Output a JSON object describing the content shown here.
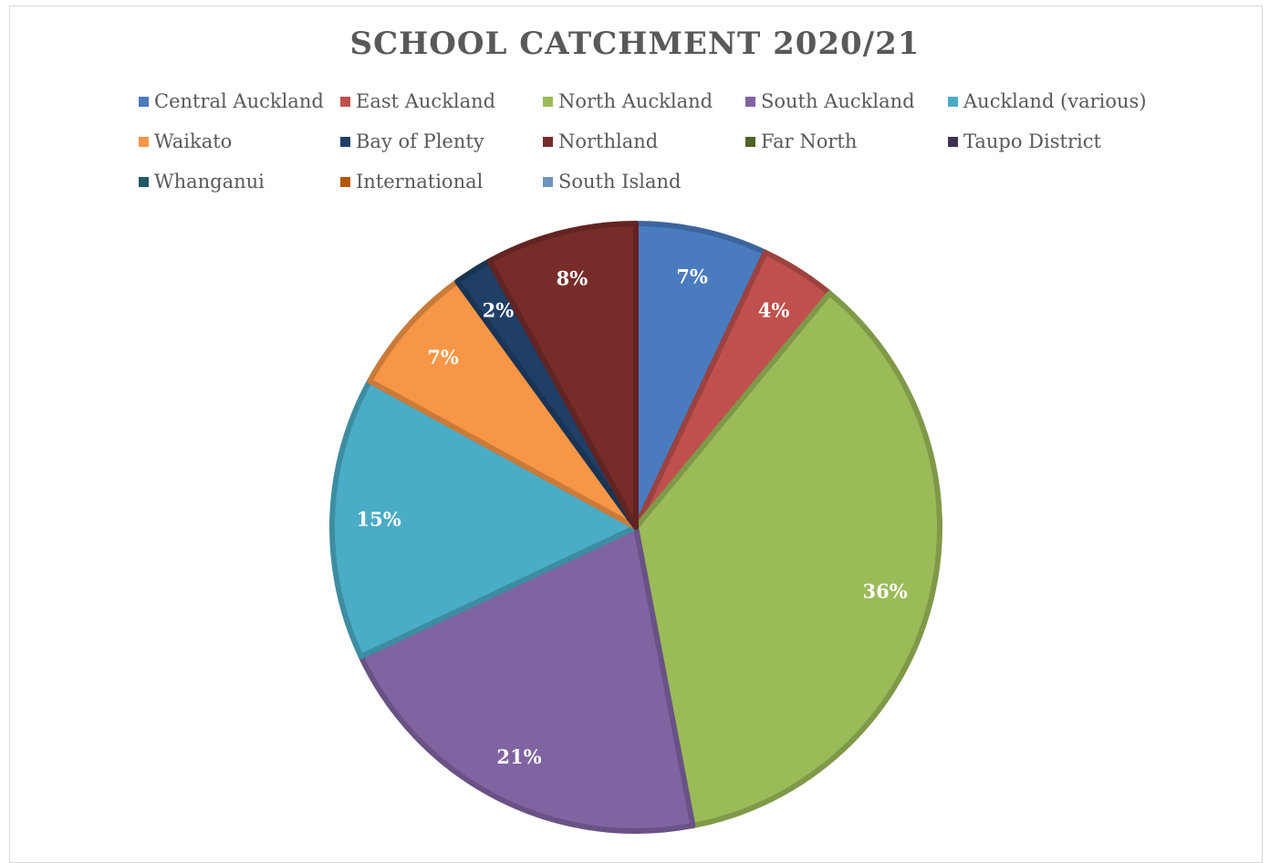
{
  "chart_data": {
    "type": "pie",
    "title": "SCHOOL CATCHMENT 2020/21",
    "legend_position": "top",
    "slices": [
      {
        "name": "Central Auckland",
        "value": 7,
        "label": "7%",
        "color": "#4a7bbf"
      },
      {
        "name": "East Auckland",
        "value": 4,
        "label": "4%",
        "color": "#c0504d"
      },
      {
        "name": "North Auckland",
        "value": 36,
        "label": "36%",
        "color": "#9bbb59"
      },
      {
        "name": "South Auckland",
        "value": 21,
        "label": "21%",
        "color": "#8064a2"
      },
      {
        "name": "Auckland (various)",
        "value": 15,
        "label": "15%",
        "color": "#4bacc6"
      },
      {
        "name": "Waikato",
        "value": 7,
        "label": "7%",
        "color": "#f79646"
      },
      {
        "name": "Bay of Plenty",
        "value": 2,
        "label": "2%",
        "color": "#1f3f66"
      },
      {
        "name": "Northland",
        "value": 8,
        "label": "8%",
        "color": "#772c2a"
      },
      {
        "name": "Far North",
        "value": 0,
        "label": "",
        "color": "#4f6228"
      },
      {
        "name": "Taupo District",
        "value": 0,
        "label": "",
        "color": "#3f3151"
      },
      {
        "name": "Whanganui",
        "value": 0,
        "label": "",
        "color": "#215a67"
      },
      {
        "name": "International",
        "value": 0,
        "label": "",
        "color": "#b65708"
      },
      {
        "name": "South Island",
        "value": 0,
        "label": "",
        "color": "#6f94be"
      }
    ]
  }
}
